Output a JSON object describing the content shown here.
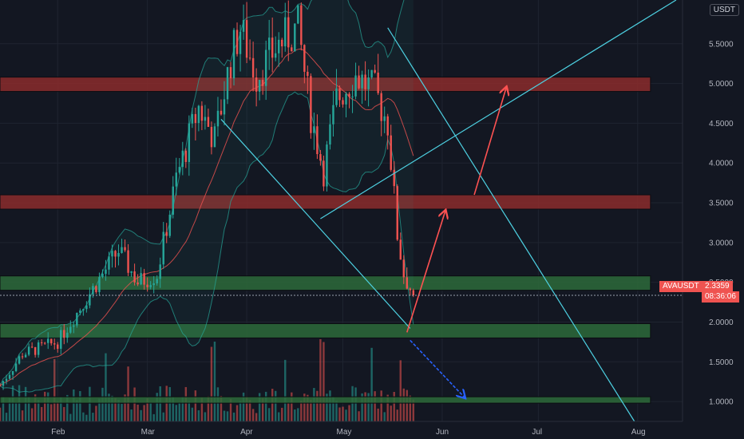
{
  "header": {
    "currency": "USDT"
  },
  "price_tag": {
    "symbol": "AVAUSDT",
    "price": "2.3359",
    "countdown": "08:36:06"
  },
  "colors": {
    "up": "#26a69a",
    "down": "#ef5350",
    "bg": "#131722",
    "grid": "#1f2430",
    "resistance": "#8b2b2b",
    "support": "#2d6a3a",
    "trendline": "#4dd0e1",
    "projection": "#ff5252",
    "down_arrow": "#2962ff"
  },
  "chart_data": {
    "type": "candlestick",
    "y_axis": {
      "ticks": [
        "5.5000",
        "5.0000",
        "4.5000",
        "4.0000",
        "3.5000",
        "3.0000",
        "2.5000",
        "2.0000",
        "1.5000",
        "1.0000"
      ],
      "tick_values": [
        5.5,
        5.0,
        4.5,
        4.0,
        3.5,
        3.0,
        2.5,
        2.0,
        1.5,
        1.0
      ],
      "ylim": [
        0.75,
        6.05
      ]
    },
    "x_axis": {
      "ticks": [
        "Feb",
        "Mar",
        "Apr",
        "May",
        "Jun",
        "Jul",
        "Aug"
      ],
      "tick_days": [
        31,
        59,
        90,
        120,
        151,
        181,
        212
      ],
      "xlim": [
        13,
        226
      ]
    },
    "zones": [
      {
        "kind": "resistance",
        "low": 4.9,
        "high": 5.08,
        "x_from_day": 13,
        "x_to_day": 216
      },
      {
        "kind": "resistance",
        "low": 3.42,
        "high": 3.6,
        "x_from_day": 13,
        "x_to_day": 216
      },
      {
        "kind": "support",
        "low": 2.4,
        "high": 2.58,
        "x_from_day": 13,
        "x_to_day": 216
      },
      {
        "kind": "support",
        "low": 1.8,
        "high": 1.98,
        "x_from_day": 13,
        "x_to_day": 216
      },
      {
        "kind": "support",
        "low": 0.98,
        "high": 1.06,
        "x_from_day": 13,
        "x_to_day": 216
      }
    ],
    "trendlines": [
      {
        "from": [
          82,
          4.55
        ],
        "to": [
          141,
          1.92
        ],
        "style": "channel"
      },
      {
        "from": [
          113,
          3.3
        ],
        "to": [
          224,
          6.05
        ],
        "style": "channel"
      },
      {
        "from": [
          134,
          5.7
        ],
        "to": [
          211,
          0.75
        ],
        "style": "channel"
      }
    ],
    "projection": [
      [
        140,
        1.87
      ],
      [
        152,
        3.4
      ],
      [
        161,
        3.6
      ],
      [
        171,
        4.95
      ]
    ],
    "down_arrow": {
      "from": [
        141,
        1.77
      ],
      "to": [
        158,
        1.05
      ]
    },
    "last_price": 2.3359,
    "last_day": 142
  }
}
